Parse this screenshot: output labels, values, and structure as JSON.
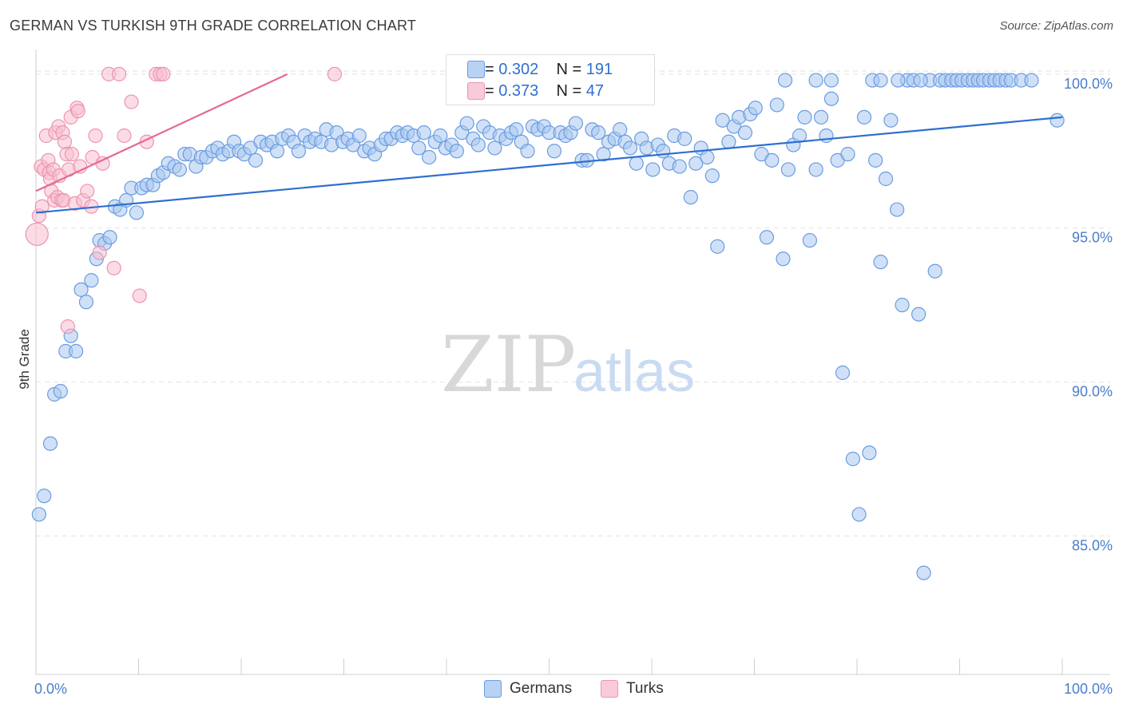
{
  "title": "GERMAN VS TURKISH 9TH GRADE CORRELATION CHART",
  "source": "Source: ZipAtlas.com",
  "watermark": {
    "zip": "ZIP",
    "atlas": "atlas"
  },
  "legend": {
    "germans": {
      "r_label": "R = ",
      "r_value": "0.302",
      "n_label": "N = ",
      "n_value": "191"
    },
    "turks": {
      "r_label": "R = ",
      "r_value": "0.373",
      "n_label": "N = ",
      "n_value": "47"
    }
  },
  "bottom_legend": {
    "germans": "Germans",
    "turks": "Turks"
  },
  "colors": {
    "german_fill": "#a9c8f0",
    "german_stroke": "#6a9ce0",
    "german_line": "#2f6fd0",
    "turk_fill": "#f7c0d0",
    "turk_stroke": "#ec94b0",
    "turk_line": "#e46a92",
    "tick_text": "#4a7ec9",
    "grid": "#e2e2e2"
  },
  "chart_data": {
    "type": "scatter",
    "title": "GERMAN VS TURKISH 9TH GRADE CORRELATION CHART",
    "xlabel": "",
    "ylabel": "9th Grade",
    "xlim": [
      0,
      100
    ],
    "ylim": [
      80.5,
      100.8
    ],
    "x_tick_labels": {
      "left": "0.0%",
      "right": "100.0%"
    },
    "y_ticks": [
      {
        "value": 100,
        "label": "100.0%"
      },
      {
        "value": 95,
        "label": "95.0%"
      },
      {
        "value": 90,
        "label": "90.0%"
      },
      {
        "value": 85,
        "label": "85.0%"
      }
    ],
    "grid": true,
    "series": [
      {
        "name": "Germans",
        "trend": {
          "x0": 0,
          "y0": 95.5,
          "x1": 100,
          "y1": 98.6
        },
        "points": [
          [
            0.3,
            85.7
          ],
          [
            0.8,
            86.3
          ],
          [
            1.4,
            88.0
          ],
          [
            1.8,
            89.6
          ],
          [
            2.4,
            89.7
          ],
          [
            2.9,
            91.0
          ],
          [
            3.4,
            91.5
          ],
          [
            3.9,
            91.0
          ],
          [
            4.4,
            93.0
          ],
          [
            4.9,
            92.6
          ],
          [
            5.4,
            93.3
          ],
          [
            5.9,
            94.0
          ],
          [
            6.2,
            94.6
          ],
          [
            6.7,
            94.5
          ],
          [
            7.2,
            94.7
          ],
          [
            7.7,
            95.7
          ],
          [
            8.2,
            95.6
          ],
          [
            8.8,
            95.9
          ],
          [
            9.3,
            96.3
          ],
          [
            9.8,
            95.5
          ],
          [
            10.3,
            96.3
          ],
          [
            10.8,
            96.4
          ],
          [
            11.4,
            96.4
          ],
          [
            11.9,
            96.7
          ],
          [
            12.4,
            96.8
          ],
          [
            12.9,
            97.1
          ],
          [
            13.5,
            97.0
          ],
          [
            14.0,
            96.9
          ],
          [
            14.5,
            97.4
          ],
          [
            15.0,
            97.4
          ],
          [
            15.6,
            97.0
          ],
          [
            16.1,
            97.3
          ],
          [
            16.6,
            97.3
          ],
          [
            17.2,
            97.5
          ],
          [
            17.7,
            97.6
          ],
          [
            18.2,
            97.4
          ],
          [
            18.8,
            97.5
          ],
          [
            19.3,
            97.8
          ],
          [
            19.8,
            97.5
          ],
          [
            20.3,
            97.4
          ],
          [
            20.9,
            97.6
          ],
          [
            21.4,
            97.2
          ],
          [
            21.9,
            97.8
          ],
          [
            22.5,
            97.7
          ],
          [
            23.0,
            97.8
          ],
          [
            23.5,
            97.5
          ],
          [
            24.0,
            97.9
          ],
          [
            24.6,
            98.0
          ],
          [
            25.1,
            97.8
          ],
          [
            25.6,
            97.5
          ],
          [
            26.2,
            98.0
          ],
          [
            26.7,
            97.8
          ],
          [
            27.2,
            97.9
          ],
          [
            27.8,
            97.8
          ],
          [
            28.3,
            98.2
          ],
          [
            28.8,
            97.7
          ],
          [
            29.3,
            98.1
          ],
          [
            29.9,
            97.8
          ],
          [
            30.4,
            97.9
          ],
          [
            30.9,
            97.7
          ],
          [
            31.5,
            98.0
          ],
          [
            32.0,
            97.5
          ],
          [
            32.5,
            97.6
          ],
          [
            33.0,
            97.4
          ],
          [
            33.6,
            97.7
          ],
          [
            34.1,
            97.9
          ],
          [
            34.6,
            97.9
          ],
          [
            35.2,
            98.1
          ],
          [
            35.7,
            98.0
          ],
          [
            36.2,
            98.1
          ],
          [
            36.8,
            98.0
          ],
          [
            37.3,
            97.6
          ],
          [
            37.8,
            98.1
          ],
          [
            38.3,
            97.3
          ],
          [
            38.9,
            97.8
          ],
          [
            39.4,
            98.0
          ],
          [
            39.9,
            97.6
          ],
          [
            40.5,
            97.7
          ],
          [
            41.0,
            97.5
          ],
          [
            41.5,
            98.1
          ],
          [
            42.0,
            98.4
          ],
          [
            42.6,
            97.9
          ],
          [
            43.1,
            97.7
          ],
          [
            43.6,
            98.3
          ],
          [
            44.2,
            98.1
          ],
          [
            44.7,
            97.6
          ],
          [
            45.2,
            98.0
          ],
          [
            45.8,
            97.9
          ],
          [
            46.3,
            98.1
          ],
          [
            46.8,
            98.2
          ],
          [
            47.3,
            97.8
          ],
          [
            47.9,
            97.5
          ],
          [
            48.4,
            98.3
          ],
          [
            48.9,
            98.2
          ],
          [
            49.5,
            98.3
          ],
          [
            50.0,
            98.1
          ],
          [
            50.5,
            97.5
          ],
          [
            51.1,
            98.1
          ],
          [
            51.6,
            98.0
          ],
          [
            52.1,
            98.1
          ],
          [
            52.6,
            98.4
          ],
          [
            53.2,
            97.2
          ],
          [
            53.7,
            97.2
          ],
          [
            54.2,
            98.2
          ],
          [
            54.8,
            98.1
          ],
          [
            55.3,
            97.4
          ],
          [
            55.8,
            97.8
          ],
          [
            56.4,
            97.9
          ],
          [
            56.9,
            98.2
          ],
          [
            57.4,
            97.8
          ],
          [
            57.9,
            97.6
          ],
          [
            58.5,
            97.1
          ],
          [
            59.0,
            97.9
          ],
          [
            59.5,
            97.6
          ],
          [
            60.1,
            96.9
          ],
          [
            60.6,
            97.7
          ],
          [
            61.1,
            97.5
          ],
          [
            61.7,
            97.1
          ],
          [
            62.2,
            98.0
          ],
          [
            62.7,
            97.0
          ],
          [
            63.2,
            97.9
          ],
          [
            63.8,
            96.0
          ],
          [
            64.3,
            97.1
          ],
          [
            64.8,
            97.6
          ],
          [
            65.4,
            97.3
          ],
          [
            65.9,
            96.7
          ],
          [
            66.4,
            94.4
          ],
          [
            66.9,
            98.5
          ],
          [
            67.5,
            97.8
          ],
          [
            68.0,
            98.3
          ],
          [
            68.5,
            98.6
          ],
          [
            69.1,
            98.1
          ],
          [
            69.6,
            98.7
          ],
          [
            70.1,
            98.9
          ],
          [
            70.7,
            97.4
          ],
          [
            71.2,
            94.7
          ],
          [
            71.7,
            97.2
          ],
          [
            72.2,
            99.0
          ],
          [
            72.8,
            94.0
          ],
          [
            73.3,
            96.9
          ],
          [
            73.8,
            97.7
          ],
          [
            74.4,
            98.0
          ],
          [
            74.9,
            98.6
          ],
          [
            75.4,
            94.6
          ],
          [
            76.0,
            96.9
          ],
          [
            76.5,
            98.6
          ],
          [
            77.0,
            98.0
          ],
          [
            77.5,
            99.2
          ],
          [
            78.1,
            97.2
          ],
          [
            78.6,
            90.3
          ],
          [
            79.1,
            97.4
          ],
          [
            79.6,
            87.5
          ],
          [
            80.2,
            85.7
          ],
          [
            80.7,
            98.6
          ],
          [
            81.2,
            87.7
          ],
          [
            81.8,
            97.2
          ],
          [
            82.3,
            93.9
          ],
          [
            82.8,
            96.6
          ],
          [
            83.3,
            98.5
          ],
          [
            83.9,
            95.6
          ],
          [
            84.4,
            92.5
          ],
          [
            84.9,
            99.8
          ],
          [
            85.5,
            99.8
          ],
          [
            86.0,
            92.2
          ],
          [
            86.5,
            83.8
          ],
          [
            87.1,
            99.8
          ],
          [
            87.6,
            93.6
          ],
          [
            88.1,
            99.8
          ],
          [
            88.6,
            99.8
          ],
          [
            89.2,
            99.8
          ],
          [
            89.7,
            99.8
          ],
          [
            90.2,
            99.8
          ],
          [
            90.8,
            99.8
          ],
          [
            91.3,
            99.8
          ],
          [
            91.8,
            99.8
          ],
          [
            92.3,
            99.8
          ],
          [
            92.9,
            99.8
          ],
          [
            93.4,
            99.8
          ],
          [
            93.9,
            99.8
          ],
          [
            94.5,
            99.8
          ],
          [
            95.0,
            99.8
          ],
          [
            96.0,
            99.8
          ],
          [
            97.0,
            99.8
          ],
          [
            99.5,
            98.5
          ],
          [
            73.0,
            99.8
          ],
          [
            76.0,
            99.8
          ],
          [
            77.5,
            99.8
          ],
          [
            81.5,
            99.8
          ],
          [
            82.3,
            99.8
          ],
          [
            84.0,
            99.8
          ],
          [
            86.2,
            99.8
          ]
        ]
      },
      {
        "name": "Turks",
        "trend": {
          "x0": 0,
          "y0": 96.2,
          "x1": 24.5,
          "y1": 100.0
        },
        "points": [
          [
            0.1,
            94.8
          ],
          [
            0.3,
            95.4
          ],
          [
            0.5,
            97.0
          ],
          [
            0.6,
            95.7
          ],
          [
            0.8,
            96.9
          ],
          [
            1.0,
            98.0
          ],
          [
            1.2,
            97.2
          ],
          [
            1.3,
            96.8
          ],
          [
            1.4,
            96.6
          ],
          [
            1.5,
            96.2
          ],
          [
            1.7,
            96.9
          ],
          [
            1.8,
            95.9
          ],
          [
            1.9,
            98.1
          ],
          [
            2.1,
            96.0
          ],
          [
            2.2,
            98.3
          ],
          [
            2.3,
            96.7
          ],
          [
            2.5,
            95.9
          ],
          [
            2.6,
            98.1
          ],
          [
            2.7,
            95.9
          ],
          [
            2.8,
            97.8
          ],
          [
            3.0,
            97.4
          ],
          [
            3.1,
            91.8
          ],
          [
            3.2,
            96.9
          ],
          [
            3.4,
            98.6
          ],
          [
            3.5,
            97.4
          ],
          [
            3.8,
            95.8
          ],
          [
            4.0,
            98.9
          ],
          [
            4.1,
            98.8
          ],
          [
            4.3,
            97.0
          ],
          [
            4.6,
            95.9
          ],
          [
            5.0,
            96.2
          ],
          [
            5.4,
            95.7
          ],
          [
            5.5,
            97.3
          ],
          [
            5.8,
            98.0
          ],
          [
            6.2,
            94.2
          ],
          [
            6.5,
            97.1
          ],
          [
            7.1,
            100.0
          ],
          [
            7.6,
            93.7
          ],
          [
            8.1,
            100.0
          ],
          [
            8.6,
            98.0
          ],
          [
            9.3,
            99.1
          ],
          [
            10.1,
            92.8
          ],
          [
            10.8,
            97.8
          ],
          [
            11.7,
            100.0
          ],
          [
            12.1,
            100.0
          ],
          [
            12.4,
            100.0
          ],
          [
            29.1,
            100.0
          ]
        ]
      }
    ]
  }
}
